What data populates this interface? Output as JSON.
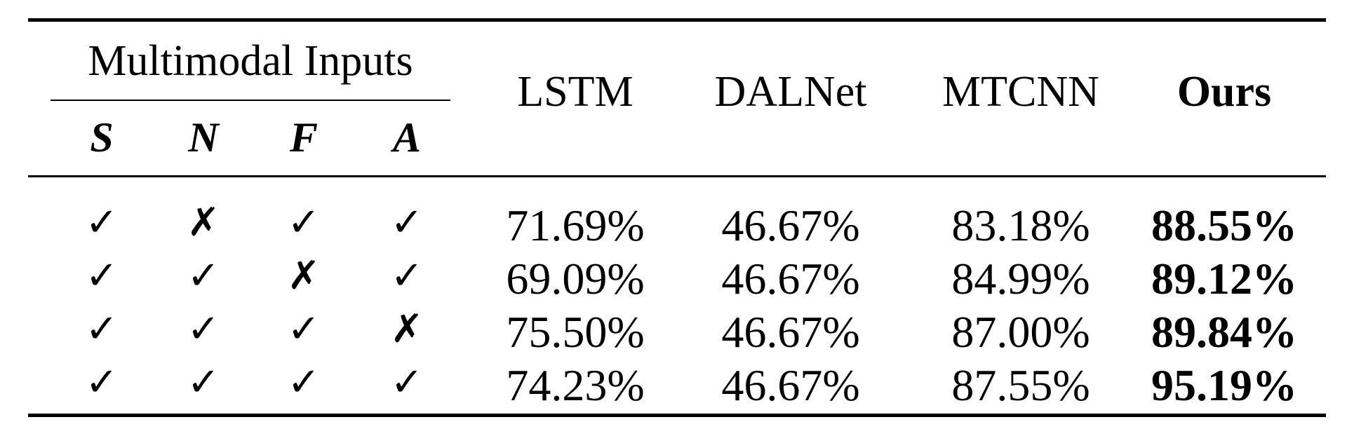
{
  "table": {
    "group_header": "Multimodal Inputs",
    "input_columns": [
      "S",
      "N",
      "F",
      "A"
    ],
    "method_columns": [
      "LSTM",
      "DALNet",
      "MTCNN",
      "Ours"
    ],
    "rows": [
      {
        "inputs": [
          "✓",
          "✗",
          "✓",
          "✓"
        ],
        "values": [
          "71.69%",
          "46.67%",
          "83.18%",
          "88.55%"
        ]
      },
      {
        "inputs": [
          "✓",
          "✓",
          "✗",
          "✓"
        ],
        "values": [
          "69.09%",
          "46.67%",
          "84.99%",
          "89.12%"
        ]
      },
      {
        "inputs": [
          "✓",
          "✓",
          "✓",
          "✗"
        ],
        "values": [
          "75.50%",
          "46.67%",
          "87.00%",
          "89.84%"
        ]
      },
      {
        "inputs": [
          "✓",
          "✓",
          "✓",
          "✓"
        ],
        "values": [
          "74.23%",
          "46.67%",
          "87.55%",
          "95.19%"
        ]
      }
    ]
  }
}
